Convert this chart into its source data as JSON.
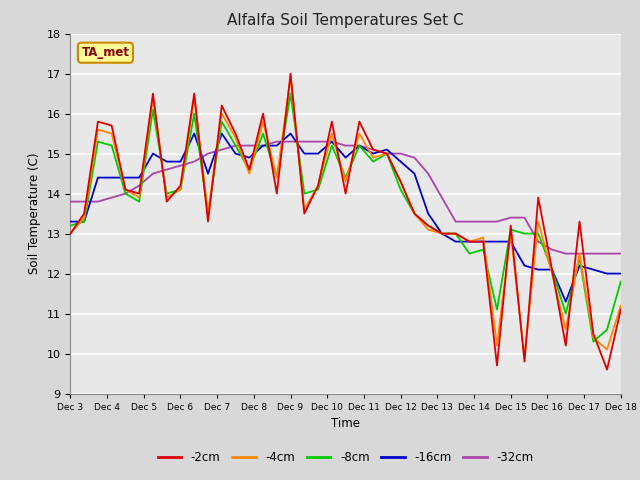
{
  "title": "Alfalfa Soil Temperatures Set C",
  "xlabel": "Time",
  "ylabel": "Soil Temperature (C)",
  "ylim": [
    9.0,
    18.0
  ],
  "yticks": [
    9.0,
    10.0,
    11.0,
    12.0,
    13.0,
    14.0,
    15.0,
    16.0,
    17.0,
    18.0
  ],
  "xtick_labels": [
    "Dec 3",
    "Dec 4",
    "Dec 5",
    "Dec 6",
    "Dec 7",
    "Dec 8",
    "Dec 9",
    "Dec 10",
    "Dec 11",
    "Dec 12",
    "Dec 13",
    "Dec 14",
    "Dec 15",
    "Dec 16",
    "Dec 17",
    "Dec 18"
  ],
  "background_color": "#d8d8d8",
  "plot_bg_color": "#e8e8e8",
  "grid_color": "#ffffff",
  "annotation_label": "TA_met",
  "annotation_bg": "#ffff99",
  "annotation_border": "#cc8800",
  "series": {
    "-2cm": {
      "color": "#dd0000",
      "values": [
        13.0,
        13.5,
        15.8,
        15.7,
        14.1,
        14.0,
        16.5,
        13.8,
        14.2,
        16.5,
        13.3,
        16.2,
        15.5,
        14.6,
        16.0,
        14.0,
        17.0,
        13.5,
        14.2,
        15.8,
        14.0,
        15.8,
        15.1,
        15.0,
        14.3,
        13.5,
        13.2,
        13.0,
        13.0,
        12.8,
        12.8,
        9.7,
        13.2,
        9.8,
        13.9,
        12.1,
        10.2,
        13.3,
        10.5,
        9.6,
        11.1
      ]
    },
    "-4cm": {
      "color": "#ff8800",
      "values": [
        13.0,
        13.4,
        15.6,
        15.5,
        14.1,
        13.9,
        16.4,
        13.9,
        14.1,
        16.4,
        13.5,
        16.0,
        15.4,
        14.5,
        15.8,
        14.4,
        16.9,
        13.6,
        14.2,
        15.5,
        14.3,
        15.5,
        14.9,
        15.0,
        14.3,
        13.5,
        13.1,
        13.0,
        13.0,
        12.8,
        12.9,
        10.2,
        13.0,
        9.9,
        13.3,
        12.0,
        10.6,
        12.5,
        10.4,
        10.1,
        11.2
      ]
    },
    "-8cm": {
      "color": "#00cc00",
      "values": [
        13.2,
        13.3,
        15.3,
        15.2,
        14.0,
        13.8,
        16.1,
        14.0,
        14.1,
        16.0,
        13.5,
        15.8,
        15.2,
        14.6,
        15.5,
        14.4,
        16.5,
        14.0,
        14.1,
        15.2,
        14.4,
        15.2,
        14.8,
        15.0,
        14.1,
        13.5,
        13.2,
        13.0,
        13.0,
        12.5,
        12.6,
        11.1,
        13.1,
        13.0,
        13.0,
        12.1,
        11.0,
        12.4,
        10.3,
        10.6,
        11.8
      ]
    },
    "-16cm": {
      "color": "#0000cc",
      "values": [
        13.3,
        13.3,
        14.4,
        14.4,
        14.4,
        14.4,
        15.0,
        14.8,
        14.8,
        15.5,
        14.5,
        15.5,
        15.0,
        14.9,
        15.2,
        15.2,
        15.5,
        15.0,
        15.0,
        15.3,
        14.9,
        15.2,
        15.0,
        15.1,
        14.8,
        14.5,
        13.5,
        13.0,
        12.8,
        12.8,
        12.8,
        12.8,
        12.8,
        12.2,
        12.1,
        12.1,
        11.3,
        12.2,
        12.1,
        12.0,
        12.0
      ]
    },
    "-32cm": {
      "color": "#aa44aa",
      "values": [
        13.8,
        13.8,
        13.8,
        13.9,
        14.0,
        14.2,
        14.5,
        14.6,
        14.7,
        14.8,
        15.0,
        15.1,
        15.2,
        15.2,
        15.2,
        15.3,
        15.3,
        15.3,
        15.3,
        15.3,
        15.2,
        15.2,
        15.1,
        15.0,
        15.0,
        14.9,
        14.5,
        13.9,
        13.3,
        13.3,
        13.3,
        13.3,
        13.4,
        13.4,
        12.8,
        12.6,
        12.5,
        12.5,
        12.5,
        12.5,
        12.5
      ]
    }
  },
  "n_points": 41,
  "total_days": 15
}
